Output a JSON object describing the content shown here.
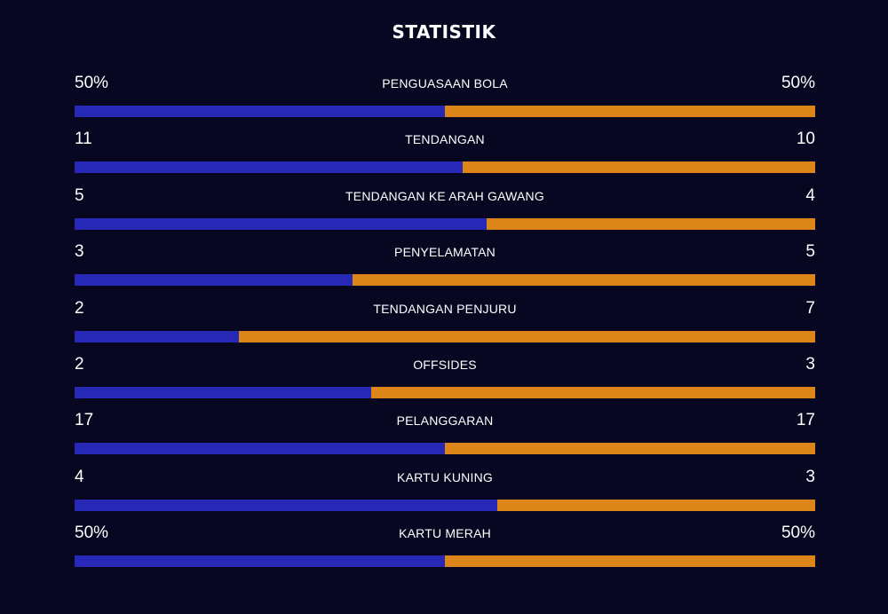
{
  "title": "STATISTIK",
  "colors": {
    "background": "#070722",
    "home_bar": "#2828b6",
    "away_bar": "#dc861a",
    "text": "#ffffff"
  },
  "stats": [
    {
      "label": "PENGUASAAN BOLA",
      "left": "50%",
      "right": "50%",
      "left_share": 0.5
    },
    {
      "label": "TENDANGAN",
      "left": "11",
      "right": "10",
      "left_share": 0.524
    },
    {
      "label": "TENDANGAN KE ARAH GAWANG",
      "left": "5",
      "right": "4",
      "left_share": 0.556
    },
    {
      "label": "PENYELAMATAN",
      "left": "3",
      "right": "5",
      "left_share": 0.375
    },
    {
      "label": "TENDANGAN PENJURU",
      "left": "2",
      "right": "7",
      "left_share": 0.222
    },
    {
      "label": "OFFSIDES",
      "left": "2",
      "right": "3",
      "left_share": 0.4
    },
    {
      "label": "PELANGGARAN",
      "left": "17",
      "right": "17",
      "left_share": 0.5
    },
    {
      "label": "KARTU KUNING",
      "left": "4",
      "right": "3",
      "left_share": 0.571
    },
    {
      "label": "KARTU MERAH",
      "left": "50%",
      "right": "50%",
      "left_share": 0.5
    }
  ]
}
